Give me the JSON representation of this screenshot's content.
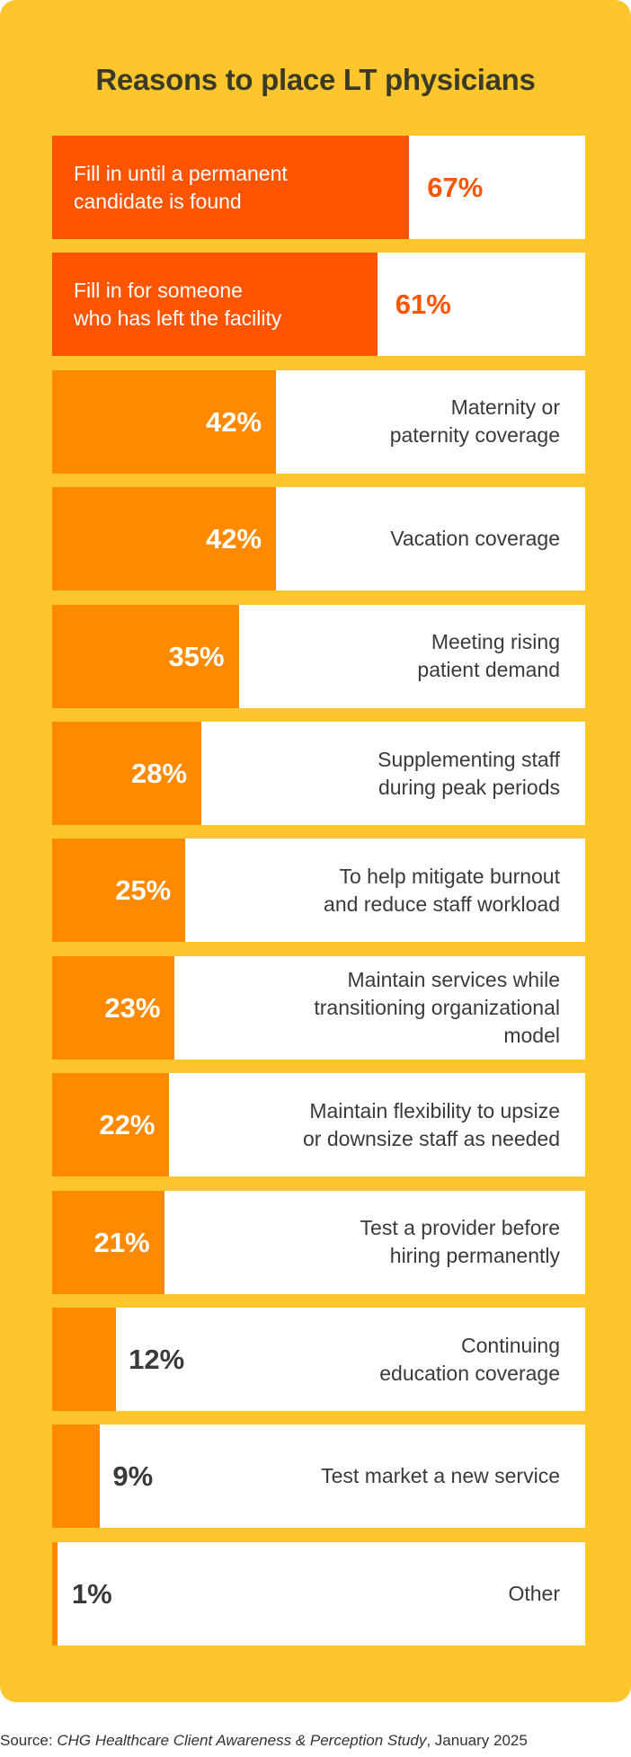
{
  "colors": {
    "background": "#FEC62D",
    "top_fill": "#FF5500",
    "fill": "#FF8A00",
    "title": "#3b3a26",
    "text": "#3a3a3a"
  },
  "chart_data": {
    "type": "bar",
    "orientation": "horizontal",
    "title": "Reasons to place LT physicians",
    "xlim": [
      0,
      100
    ],
    "unit": "%",
    "grid": false,
    "categories": [
      "Fill in until a permanent candidate is found",
      "Fill in for someone who has left the facility",
      "Maternity or paternity coverage",
      "Vacation coverage",
      "Meeting rising patient demand",
      "Supplementing staff during peak periods",
      "To help mitigate burnout and reduce staff workload",
      "Maintain services while transitioning organizational model",
      "Maintain flexibility to upsize or downsize staff as needed",
      "Test a provider before hiring permanently",
      "Continuing education coverage",
      "Test market a new service",
      "Other"
    ],
    "values": [
      67,
      61,
      42,
      42,
      35,
      28,
      25,
      23,
      22,
      21,
      12,
      9,
      1
    ],
    "value_labels": [
      "67%",
      "61%",
      "42%",
      "42%",
      "35%",
      "28%",
      "25%",
      "23%",
      "22%",
      "21%",
      "12%",
      "9%",
      "1%"
    ],
    "label_lines": [
      [
        "Fill in until a permanent",
        "candidate is found"
      ],
      [
        "Fill in for someone",
        "who has left the facility"
      ],
      [
        "Maternity or",
        "paternity coverage"
      ],
      [
        "Vacation coverage"
      ],
      [
        "Meeting rising",
        "patient demand"
      ],
      [
        "Supplementing staff",
        "during peak periods"
      ],
      [
        "To help mitigate burnout",
        "and reduce staff workload"
      ],
      [
        "Maintain services while",
        "transitioning organizational",
        "model"
      ],
      [
        "Maintain flexibility to upsize",
        "or downsize staff as needed"
      ],
      [
        "Test a provider before",
        "hiring permanently"
      ],
      [
        "Continuing",
        "education coverage"
      ],
      [
        "Test market a new service"
      ],
      [
        "Other"
      ]
    ]
  },
  "source": {
    "prefix": "Source: ",
    "study": "CHG Healthcare Client Awareness & Perception Study",
    "suffix": ", January 2025"
  }
}
